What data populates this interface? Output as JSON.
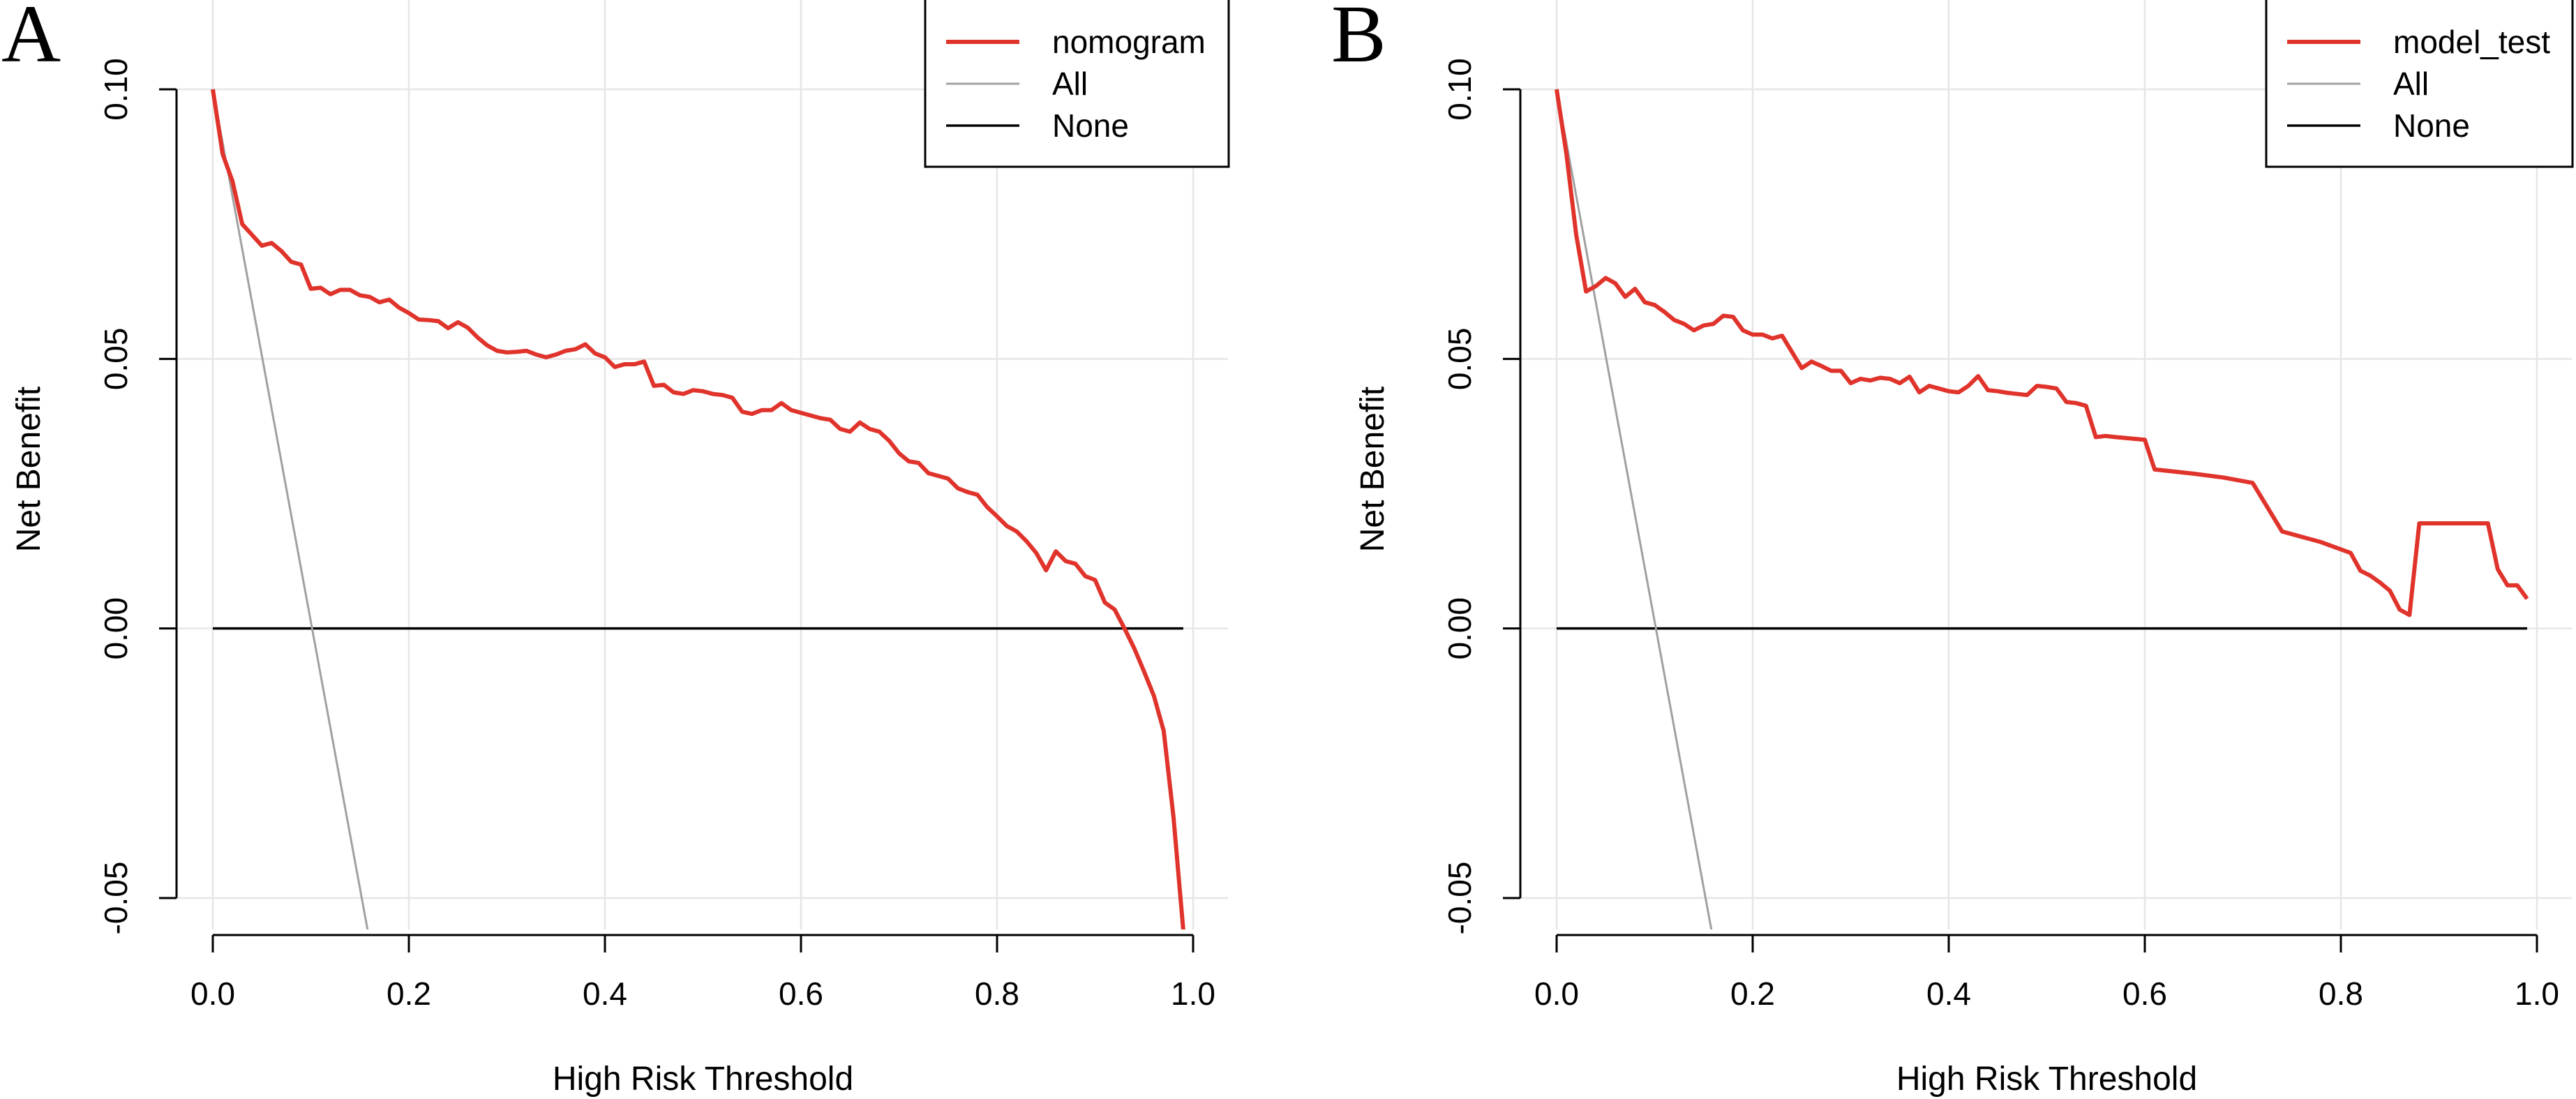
{
  "chart_data": [
    {
      "type": "line",
      "panel_label": "A",
      "xlabel": "High Risk Threshold",
      "ylabel": "Net Benefit",
      "xlim": [
        0,
        1
      ],
      "ylim": [
        -0.05,
        0.1
      ],
      "x_ticks": [
        "0.0",
        "0.2",
        "0.4",
        "0.6",
        "0.8",
        "1.0"
      ],
      "y_ticks": [
        "-0.05",
        "0.00",
        "0.05",
        "0.10"
      ],
      "grid": true,
      "legend_position": "top-right",
      "series": [
        {
          "name": "nomogram",
          "color": "#E0332B",
          "points": [
            [
              0.0,
              0.1
            ],
            [
              0.01,
              0.088
            ],
            [
              0.02,
              0.083
            ],
            [
              0.03,
              0.075
            ],
            [
              0.04,
              0.073
            ],
            [
              0.05,
              0.071
            ],
            [
              0.06,
              0.0715
            ],
            [
              0.07,
              0.07
            ],
            [
              0.08,
              0.068
            ],
            [
              0.09,
              0.0675
            ],
            [
              0.1,
              0.063
            ],
            [
              0.11,
              0.0632
            ],
            [
              0.12,
              0.062
            ],
            [
              0.13,
              0.0628
            ],
            [
              0.14,
              0.0628
            ],
            [
              0.15,
              0.0618
            ],
            [
              0.16,
              0.0615
            ],
            [
              0.17,
              0.0605
            ],
            [
              0.18,
              0.061
            ],
            [
              0.19,
              0.0595
            ],
            [
              0.2,
              0.0585
            ],
            [
              0.21,
              0.0573
            ],
            [
              0.22,
              0.0572
            ],
            [
              0.23,
              0.057
            ],
            [
              0.24,
              0.0557
            ],
            [
              0.25,
              0.0568
            ],
            [
              0.26,
              0.0558
            ],
            [
              0.27,
              0.054
            ],
            [
              0.28,
              0.0525
            ],
            [
              0.29,
              0.0515
            ],
            [
              0.3,
              0.0512
            ],
            [
              0.31,
              0.0513
            ],
            [
              0.32,
              0.0515
            ],
            [
              0.33,
              0.0508
            ],
            [
              0.34,
              0.0503
            ],
            [
              0.35,
              0.0508
            ],
            [
              0.36,
              0.0515
            ],
            [
              0.37,
              0.0518
            ],
            [
              0.38,
              0.0527
            ],
            [
              0.39,
              0.051
            ],
            [
              0.4,
              0.0503
            ],
            [
              0.41,
              0.0485
            ],
            [
              0.42,
              0.049
            ],
            [
              0.43,
              0.049
            ],
            [
              0.44,
              0.0495
            ],
            [
              0.45,
              0.045
            ],
            [
              0.46,
              0.0452
            ],
            [
              0.47,
              0.0438
            ],
            [
              0.48,
              0.0435
            ],
            [
              0.49,
              0.0442
            ],
            [
              0.5,
              0.044
            ],
            [
              0.51,
              0.0435
            ],
            [
              0.52,
              0.0433
            ],
            [
              0.53,
              0.0428
            ],
            [
              0.54,
              0.0402
            ],
            [
              0.55,
              0.0398
            ],
            [
              0.56,
              0.0405
            ],
            [
              0.57,
              0.0405
            ],
            [
              0.58,
              0.0418
            ],
            [
              0.59,
              0.0405
            ],
            [
              0.6,
              0.04
            ],
            [
              0.61,
              0.0395
            ],
            [
              0.62,
              0.039
            ],
            [
              0.63,
              0.0387
            ],
            [
              0.64,
              0.037
            ],
            [
              0.65,
              0.0365
            ],
            [
              0.66,
              0.0382
            ],
            [
              0.67,
              0.037
            ],
            [
              0.68,
              0.0365
            ],
            [
              0.69,
              0.0348
            ],
            [
              0.7,
              0.0325
            ],
            [
              0.71,
              0.031
            ],
            [
              0.72,
              0.0307
            ],
            [
              0.73,
              0.0288
            ],
            [
              0.74,
              0.0283
            ],
            [
              0.75,
              0.0278
            ],
            [
              0.76,
              0.026
            ],
            [
              0.77,
              0.0253
            ],
            [
              0.78,
              0.0248
            ],
            [
              0.79,
              0.0225
            ],
            [
              0.8,
              0.0208
            ],
            [
              0.81,
              0.019
            ],
            [
              0.82,
              0.018
            ],
            [
              0.83,
              0.0162
            ],
            [
              0.84,
              0.014
            ],
            [
              0.85,
              0.0108
            ],
            [
              0.86,
              0.0143
            ],
            [
              0.87,
              0.0125
            ],
            [
              0.88,
              0.012
            ],
            [
              0.89,
              0.0097
            ],
            [
              0.9,
              0.009
            ],
            [
              0.91,
              0.0048
            ],
            [
              0.92,
              0.0035
            ],
            [
              0.93,
              0.0
            ],
            [
              0.94,
              -0.0037
            ],
            [
              0.95,
              -0.008
            ],
            [
              0.96,
              -0.0125
            ],
            [
              0.97,
              -0.019
            ],
            [
              0.98,
              -0.035
            ],
            [
              0.99,
              -0.056
            ]
          ]
        },
        {
          "name": "All",
          "color": "#A0A0A0",
          "points": [
            [
              0.0,
              0.1
            ],
            [
              0.158,
              -0.056
            ]
          ]
        },
        {
          "name": "None",
          "color": "#000000",
          "points": [
            [
              0.0,
              0.0
            ],
            [
              0.99,
              0.0
            ]
          ]
        }
      ]
    },
    {
      "type": "line",
      "panel_label": "B",
      "xlabel": "High Risk Threshold",
      "ylabel": "Net Benefit",
      "xlim": [
        0,
        1
      ],
      "ylim": [
        -0.05,
        0.1
      ],
      "x_ticks": [
        "0.0",
        "0.2",
        "0.4",
        "0.6",
        "0.8",
        "1.0"
      ],
      "y_ticks": [
        "-0.05",
        "0.00",
        "0.05",
        "0.10"
      ],
      "grid": true,
      "legend_position": "top-right",
      "series": [
        {
          "name": "model_test",
          "color": "#E0332B",
          "points": [
            [
              0.0,
              0.1
            ],
            [
              0.01,
              0.088
            ],
            [
              0.02,
              0.073
            ],
            [
              0.03,
              0.0625
            ],
            [
              0.04,
              0.0635
            ],
            [
              0.05,
              0.065
            ],
            [
              0.06,
              0.064
            ],
            [
              0.07,
              0.0615
            ],
            [
              0.08,
              0.063
            ],
            [
              0.09,
              0.0605
            ],
            [
              0.1,
              0.06
            ],
            [
              0.11,
              0.0587
            ],
            [
              0.12,
              0.0572
            ],
            [
              0.13,
              0.0565
            ],
            [
              0.14,
              0.0553
            ],
            [
              0.15,
              0.0562
            ],
            [
              0.16,
              0.0565
            ],
            [
              0.17,
              0.058
            ],
            [
              0.18,
              0.0578
            ],
            [
              0.19,
              0.0553
            ],
            [
              0.2,
              0.0545
            ],
            [
              0.21,
              0.0545
            ],
            [
              0.22,
              0.0538
            ],
            [
              0.23,
              0.0543
            ],
            [
              0.24,
              0.0513
            ],
            [
              0.25,
              0.0483
            ],
            [
              0.26,
              0.0495
            ],
            [
              0.27,
              0.0487
            ],
            [
              0.28,
              0.0478
            ],
            [
              0.29,
              0.0478
            ],
            [
              0.3,
              0.0455
            ],
            [
              0.31,
              0.0463
            ],
            [
              0.32,
              0.046
            ],
            [
              0.33,
              0.0465
            ],
            [
              0.34,
              0.0463
            ],
            [
              0.35,
              0.0455
            ],
            [
              0.36,
              0.0467
            ],
            [
              0.37,
              0.0438
            ],
            [
              0.38,
              0.045
            ],
            [
              0.39,
              0.0445
            ],
            [
              0.4,
              0.044
            ],
            [
              0.41,
              0.0438
            ],
            [
              0.42,
              0.045
            ],
            [
              0.43,
              0.0468
            ],
            [
              0.44,
              0.0442
            ],
            [
              0.45,
              0.044
            ],
            [
              0.46,
              0.0437
            ],
            [
              0.47,
              0.0435
            ],
            [
              0.48,
              0.0433
            ],
            [
              0.49,
              0.045
            ],
            [
              0.5,
              0.0448
            ],
            [
              0.51,
              0.0445
            ],
            [
              0.52,
              0.042
            ],
            [
              0.53,
              0.0418
            ],
            [
              0.54,
              0.0413
            ],
            [
              0.55,
              0.0355
            ],
            [
              0.56,
              0.0357
            ],
            [
              0.57,
              0.0355
            ],
            [
              0.6,
              0.035
            ],
            [
              0.61,
              0.0295
            ],
            [
              0.65,
              0.0287
            ],
            [
              0.68,
              0.028
            ],
            [
              0.71,
              0.027
            ],
            [
              0.74,
              0.018
            ],
            [
              0.78,
              0.016
            ],
            [
              0.81,
              0.014
            ],
            [
              0.82,
              0.0107
            ],
            [
              0.83,
              0.0098
            ],
            [
              0.84,
              0.0085
            ],
            [
              0.85,
              0.007
            ],
            [
              0.86,
              0.0035
            ],
            [
              0.87,
              0.0025
            ],
            [
              0.88,
              0.0195
            ],
            [
              0.95,
              0.0195
            ],
            [
              0.96,
              0.011
            ],
            [
              0.97,
              0.008
            ],
            [
              0.98,
              0.008
            ],
            [
              0.99,
              0.0055
            ]
          ]
        },
        {
          "name": "All",
          "color": "#A0A0A0",
          "points": [
            [
              0.0,
              0.1
            ],
            [
              0.158,
              -0.056
            ]
          ]
        },
        {
          "name": "None",
          "color": "#000000",
          "points": [
            [
              0.0,
              0.0
            ],
            [
              0.99,
              0.0
            ]
          ]
        }
      ]
    }
  ]
}
